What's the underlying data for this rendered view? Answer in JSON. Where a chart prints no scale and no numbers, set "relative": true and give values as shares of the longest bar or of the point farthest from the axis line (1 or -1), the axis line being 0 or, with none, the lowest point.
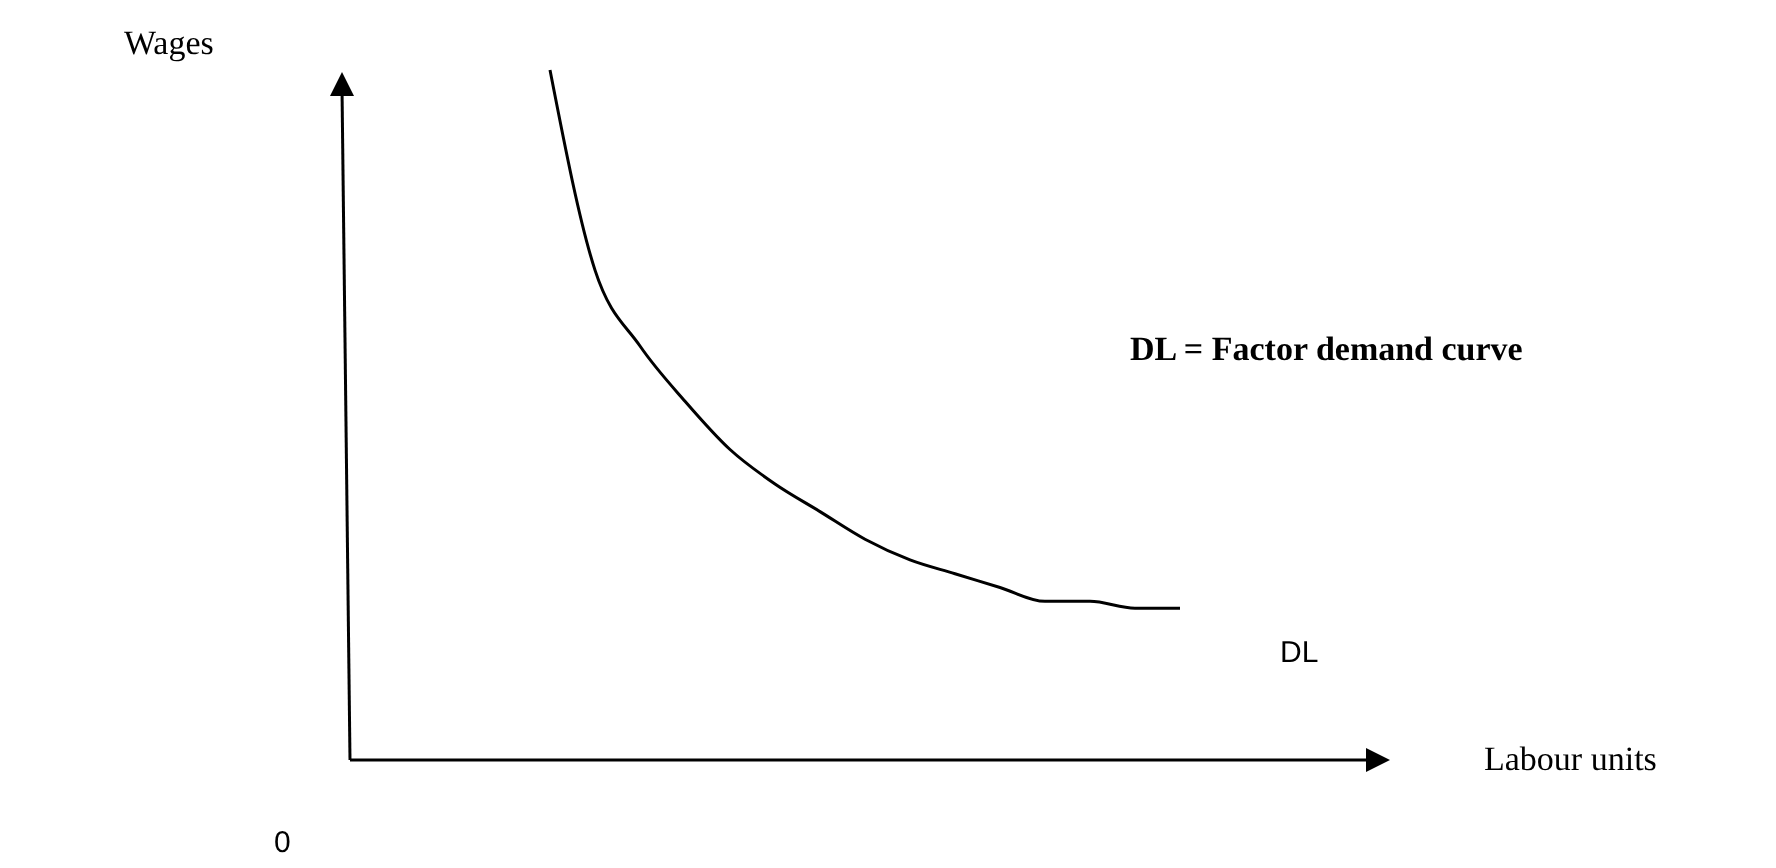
{
  "chart_data": {
    "type": "line",
    "relative": true,
    "categories": [
      null,
      null,
      null,
      null,
      null,
      null,
      null,
      null,
      null,
      null,
      null,
      null,
      null,
      null,
      null
    ],
    "series": [
      {
        "color": "#000000",
        "values": [
          1,
          0.71,
          0.6,
          0.52,
          0.45,
          0.4,
          0.36,
          0.32,
          0.29,
          0.27,
          0.25,
          0.23,
          0.23,
          0.22,
          0.22
        ]
      }
    ],
    "annotations": [
      "Wages",
      "DL = Factor demand curve",
      "DL",
      "Labour units",
      "0"
    ],
    "grid": false,
    "marker": "none",
    "line_style": "solid"
  }
}
